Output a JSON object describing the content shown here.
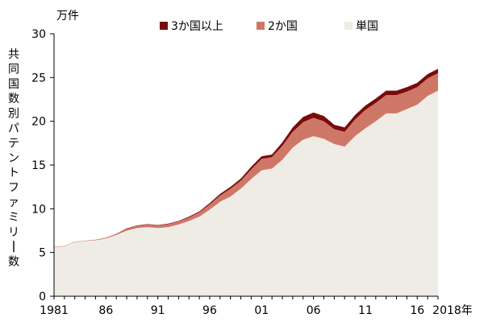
{
  "chart_data": {
    "type": "area",
    "stacked": true,
    "unit": "万件",
    "ylabel": "共同国数別パテントファミリー数",
    "xlabel": "",
    "ylim": [
      0,
      30
    ],
    "yticks": [
      0,
      5,
      10,
      15,
      20,
      25,
      30
    ],
    "xlim": [
      1981,
      2018
    ],
    "xticks": [
      {
        "x": 1981,
        "label": "1981"
      },
      {
        "x": 1986,
        "label": "86"
      },
      {
        "x": 1991,
        "label": "91"
      },
      {
        "x": 1996,
        "label": "96"
      },
      {
        "x": 2001,
        "label": "01"
      },
      {
        "x": 2006,
        "label": "06"
      },
      {
        "x": 2011,
        "label": "11"
      },
      {
        "x": 2016,
        "label": "16"
      },
      {
        "x": 2018,
        "label": "2018年"
      }
    ],
    "grid": false,
    "legend_position": "top",
    "x": [
      1981,
      1982,
      1983,
      1984,
      1985,
      1986,
      1987,
      1988,
      1989,
      1990,
      1991,
      1992,
      1993,
      1994,
      1995,
      1996,
      1997,
      1998,
      1999,
      2000,
      2001,
      2002,
      2003,
      2004,
      2005,
      2006,
      2007,
      2008,
      2009,
      2010,
      2011,
      2012,
      2013,
      2014,
      2015,
      2016,
      2017,
      2018
    ],
    "series": [
      {
        "name": "単国",
        "color": "#efece6",
        "values": [
          5.6,
          5.7,
          6.2,
          6.3,
          6.4,
          6.6,
          7.0,
          7.5,
          7.8,
          7.9,
          7.8,
          7.9,
          8.2,
          8.6,
          9.1,
          9.9,
          10.8,
          11.4,
          12.3,
          13.4,
          14.4,
          14.6,
          15.6,
          17.0,
          17.9,
          18.3,
          18.0,
          17.4,
          17.1,
          18.3,
          19.2,
          20.0,
          20.9,
          20.9,
          21.4,
          21.9,
          22.9,
          23.5
        ]
      },
      {
        "name": "2か国",
        "color": "#cf7767",
        "values": [
          0.05,
          0.05,
          0.05,
          0.05,
          0.07,
          0.1,
          0.15,
          0.2,
          0.25,
          0.3,
          0.3,
          0.35,
          0.35,
          0.4,
          0.5,
          0.6,
          0.7,
          0.9,
          0.9,
          1.1,
          1.3,
          1.3,
          1.6,
          1.8,
          2.0,
          2.1,
          2.0,
          1.7,
          1.7,
          1.9,
          2.1,
          2.1,
          2.1,
          2.1,
          2.0,
          2.0,
          2.0,
          2.0
        ]
      },
      {
        "name": "3か国以上",
        "color": "#7a0b0b",
        "values": [
          0.0,
          0.0,
          0.0,
          0.0,
          0.0,
          0.0,
          0.0,
          0.05,
          0.05,
          0.05,
          0.05,
          0.05,
          0.05,
          0.1,
          0.1,
          0.15,
          0.2,
          0.2,
          0.25,
          0.3,
          0.3,
          0.3,
          0.4,
          0.5,
          0.6,
          0.6,
          0.6,
          0.5,
          0.5,
          0.5,
          0.5,
          0.5,
          0.5,
          0.5,
          0.5,
          0.5,
          0.5,
          0.5
        ]
      }
    ]
  }
}
